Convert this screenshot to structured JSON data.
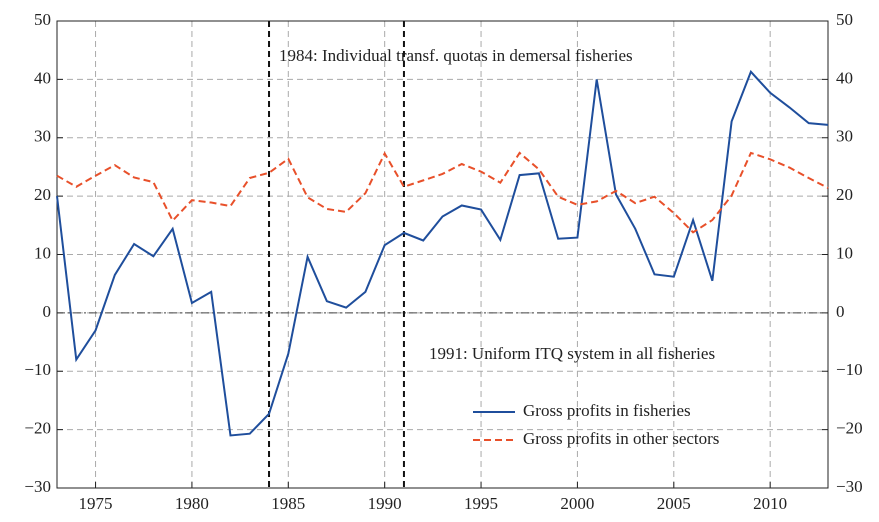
{
  "chart_data": {
    "type": "line",
    "x": [
      1973,
      1974,
      1975,
      1976,
      1977,
      1978,
      1979,
      1980,
      1981,
      1982,
      1983,
      1984,
      1985,
      1986,
      1987,
      1988,
      1989,
      1990,
      1991,
      1992,
      1993,
      1994,
      1995,
      1996,
      1997,
      1998,
      1999,
      2000,
      2001,
      2002,
      2003,
      2004,
      2005,
      2006,
      2007,
      2008,
      2009,
      2010,
      2011,
      2012,
      2013
    ],
    "series": [
      {
        "name": "Gross profits in fisheries",
        "color": "#1f4e9c",
        "dash": "solid",
        "values": [
          20,
          -8,
          -3,
          6.5,
          11.8,
          9.7,
          14.4,
          1.7,
          3.6,
          -21,
          -20.7,
          -17.3,
          -7,
          9.6,
          2,
          0.9,
          3.6,
          11.6,
          13.7,
          12.4,
          16.5,
          18.4,
          17.7,
          12.5,
          23.6,
          23.9,
          12.7,
          12.9,
          40,
          20.3,
          14.4,
          6.6,
          6.2,
          15.9,
          5.5,
          32.8,
          41.3,
          37.7,
          35.2,
          32.5,
          32.2
        ]
      },
      {
        "name": "Gross profits in other sectors",
        "color": "#e8502a",
        "dash": "dashed",
        "values": [
          23.5,
          21.6,
          23.5,
          25.3,
          23.2,
          22.4,
          15.8,
          19.3,
          18.9,
          18.3,
          23.1,
          24.0,
          26.4,
          19.8,
          17.8,
          17.3,
          20.5,
          27.3,
          21.6,
          22.7,
          23.8,
          25.5,
          24.2,
          22.3,
          27.4,
          24.6,
          19.9,
          18.5,
          19.1,
          20.9,
          18.8,
          19.9,
          17.1,
          13.8,
          15.9,
          20.1,
          27.4,
          26.3,
          24.9,
          23.1,
          21.4
        ]
      }
    ],
    "xlim": [
      1973,
      2013
    ],
    "xticks": [
      1975,
      1980,
      1985,
      1990,
      1995,
      2000,
      2005,
      2010
    ],
    "ylim": [
      -30,
      50
    ],
    "yticks": [
      {
        "value": -30,
        "label": "−30"
      },
      {
        "value": -20,
        "label": "−20"
      },
      {
        "value": -10,
        "label": "−10"
      },
      0,
      10,
      20,
      30,
      40,
      50
    ],
    "y2lim": [
      -30,
      50
    ],
    "y2ticks": [
      {
        "value": -30,
        "label": "−30"
      },
      {
        "value": -20,
        "label": "−20"
      },
      {
        "value": -10,
        "label": "−10"
      },
      0,
      10,
      20,
      30,
      40,
      50
    ],
    "grid": true,
    "legend": "lower right",
    "vlines": [
      {
        "x": 1984,
        "label": "1984: Individual transf. quotas in demersal fisheries"
      },
      {
        "x": 1991,
        "label": "1991: Uniform ITQ system in all fisheries"
      }
    ]
  }
}
